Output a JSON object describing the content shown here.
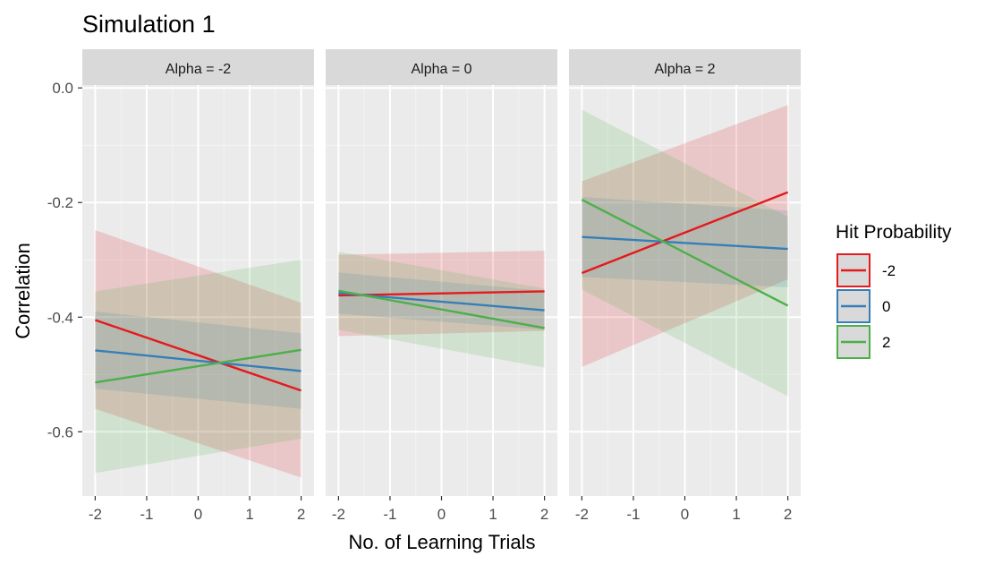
{
  "chart_data": {
    "type": "line",
    "title": "Simulation 1",
    "xlabel": "No. of Learning Trials",
    "ylabel": "Correlation",
    "xlim": [
      -2.25,
      2.25
    ],
    "ylim": [
      -0.712,
      0.005
    ],
    "x_ticks": [
      -2,
      -1,
      0,
      1,
      2
    ],
    "x_tick_labels": [
      "-2",
      "-1",
      "0",
      "1",
      "2"
    ],
    "y_ticks": [
      0.0,
      -0.2,
      -0.4,
      -0.6
    ],
    "y_tick_labels": [
      "0.0",
      "-0.2",
      "-0.4",
      "-0.6"
    ],
    "grid": true,
    "legend": {
      "title": "Hit Probability",
      "position": "right",
      "entries": [
        "-2",
        "0",
        "2"
      ]
    },
    "colors": {
      "-2": "#E41A1C",
      "0": "#377EB8",
      "2": "#4DAF4A"
    },
    "panels": [
      {
        "label": "Alpha = -2",
        "series": [
          {
            "name": "-2",
            "x": [
              -2,
              2
            ],
            "y": [
              -0.405,
              -0.528
            ],
            "lower": [
              -0.56,
              -0.68
            ],
            "upper": [
              -0.248,
              -0.375
            ]
          },
          {
            "name": "0",
            "x": [
              -2,
              2
            ],
            "y": [
              -0.458,
              -0.494
            ],
            "lower": [
              -0.525,
              -0.56
            ],
            "upper": [
              -0.39,
              -0.428
            ]
          },
          {
            "name": "2",
            "x": [
              -2,
              2
            ],
            "y": [
              -0.514,
              -0.457
            ],
            "lower": [
              -0.672,
              -0.612
            ],
            "upper": [
              -0.355,
              -0.3
            ]
          }
        ]
      },
      {
        "label": "Alpha = 0",
        "series": [
          {
            "name": "-2",
            "x": [
              -2,
              2
            ],
            "y": [
              -0.362,
              -0.355
            ],
            "lower": [
              -0.433,
              -0.424
            ],
            "upper": [
              -0.291,
              -0.284
            ]
          },
          {
            "name": "0",
            "x": [
              -2,
              2
            ],
            "y": [
              -0.358,
              -0.388
            ],
            "lower": [
              -0.394,
              -0.422
            ],
            "upper": [
              -0.322,
              -0.354
            ]
          },
          {
            "name": "2",
            "x": [
              -2,
              2
            ],
            "y": [
              -0.354,
              -0.419
            ],
            "lower": [
              -0.422,
              -0.488
            ],
            "upper": [
              -0.286,
              -0.35
            ]
          }
        ]
      },
      {
        "label": "Alpha = 2",
        "series": [
          {
            "name": "-2",
            "x": [
              -2,
              2
            ],
            "y": [
              -0.323,
              -0.182
            ],
            "lower": [
              -0.487,
              -0.334
            ],
            "upper": [
              -0.163,
              -0.03
            ]
          },
          {
            "name": "0",
            "x": [
              -2,
              2
            ],
            "y": [
              -0.26,
              -0.281
            ],
            "lower": [
              -0.33,
              -0.348
            ],
            "upper": [
              -0.19,
              -0.214
            ]
          },
          {
            "name": "2",
            "x": [
              -2,
              2
            ],
            "y": [
              -0.195,
              -0.38
            ],
            "lower": [
              -0.352,
              -0.538
            ],
            "upper": [
              -0.038,
              -0.225
            ]
          }
        ]
      }
    ]
  }
}
